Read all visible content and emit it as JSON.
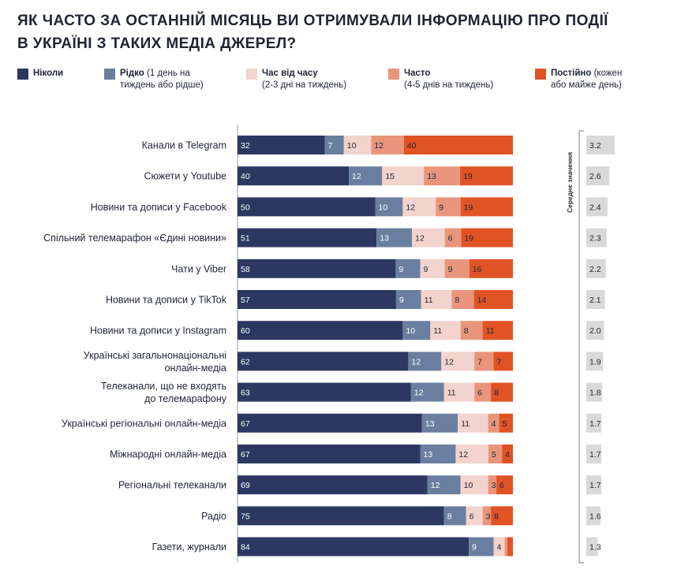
{
  "title_line1": "ЯК ЧАСТО ЗА ОСТАННІЙ МІСЯЦЬ ВИ ОТРИМУВАЛИ ІНФОРМАЦІЮ ПРО ПОДІЇ",
  "title_line2": "В УКРАЇНІ З ТАКИХ МЕДІА ДЖЕРЕЛ?",
  "legend": [
    {
      "bold": "Ніколи",
      "rest": "",
      "rest2": "",
      "color": "#2c3862"
    },
    {
      "bold": "Рідко",
      "rest": " (1 день на",
      "rest2": "тиждень або рідше)",
      "color": "#6a7fa0"
    },
    {
      "bold": "Час від часу",
      "rest": "",
      "rest2": "(2-3 дні на тиждень)",
      "color": "#f3d3cd"
    },
    {
      "bold": "Часто",
      "rest": "",
      "rest2": "(4-5 днів на тиждень)",
      "color": "#e8957c"
    },
    {
      "bold": "Постійно",
      "rest": " (кожен",
      "rest2": "або майже день)",
      "color": "#e05325"
    }
  ],
  "chart_data": {
    "type": "bar",
    "orientation": "horizontal",
    "stacked": true,
    "title": "ЯК ЧАСТО ЗА ОСТАННІЙ МІСЯЦЬ ВИ ОТРИМУВАЛИ ІНФОРМАЦІЮ ПРО ПОДІЇ В УКРАЇНІ З ТАКИХ МЕДІА ДЖЕРЕЛ?",
    "unit": "%",
    "categories": [
      [
        "Канали в Telegram"
      ],
      [
        "Сюжети у Youtube"
      ],
      [
        "Новини та дописи у Facebook"
      ],
      [
        "Спільний телемарафон «Єдині новини»"
      ],
      [
        "Чати у Viber"
      ],
      [
        "Новини та дописи у TikTok"
      ],
      [
        "Новини та дописи у Instagram"
      ],
      [
        "Українські загальнонаціональні",
        "онлайн-медіа"
      ],
      [
        "Телеканали, що не входять",
        "до телемарафону"
      ],
      [
        "Українські регіональні онлайн-медіа"
      ],
      [
        "Міжнародні онлайн-медіа"
      ],
      [
        "Регіональні телеканали"
      ],
      [
        "Радіо"
      ],
      [
        "Газети, журнали"
      ]
    ],
    "series": [
      {
        "name": "Ніколи",
        "color": "#2c3862",
        "label_color": "#ffffff",
        "values": [
          32,
          40,
          50,
          51,
          58,
          57,
          60,
          62,
          63,
          67,
          67,
          69,
          75,
          84
        ]
      },
      {
        "name": "Рідко (1 день на тиждень або рідше)",
        "color": "#6a7fa0",
        "label_color": "#ffffff",
        "values": [
          7,
          12,
          10,
          13,
          9,
          9,
          10,
          12,
          12,
          13,
          13,
          12,
          8,
          9
        ]
      },
      {
        "name": "Час від часу (2-3 дні на тиждень)",
        "color": "#f3d3cd",
        "label_color": "#1f2433",
        "values": [
          10,
          15,
          12,
          12,
          9,
          11,
          11,
          12,
          11,
          11,
          12,
          10,
          6,
          4
        ]
      },
      {
        "name": "Часто (4-5 днів на тиждень)",
        "color": "#e8957c",
        "label_color": "#1f2433",
        "values": [
          12,
          13,
          9,
          6,
          9,
          8,
          8,
          7,
          6,
          4,
          5,
          3,
          3,
          1
        ]
      },
      {
        "name": "Постійно (кожен або майже день)",
        "color": "#e05325",
        "label_color": "#1f2433",
        "values": [
          40,
          19,
          19,
          19,
          16,
          14,
          11,
          7,
          8,
          5,
          4,
          6,
          8,
          2
        ]
      }
    ],
    "hidden_labels_below": 2,
    "mean_title": "Середнє значення",
    "means": [
      3.2,
      2.6,
      2.4,
      2.3,
      2.2,
      2.1,
      2.0,
      1.9,
      1.8,
      1.7,
      1.7,
      1.7,
      1.6,
      1.3
    ],
    "mean_color": "#d9d9d9",
    "mean_range": [
      0,
      5
    ]
  }
}
